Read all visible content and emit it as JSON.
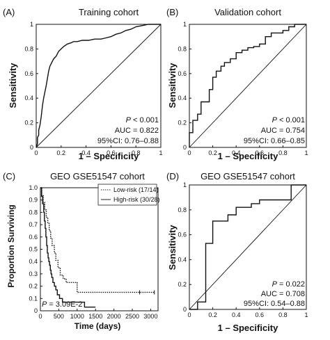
{
  "chart_data": [
    {
      "panel": "(A)",
      "type": "line",
      "title": "Training cohort",
      "xlabel": "1 – Specificity",
      "ylabel": "Sensitivity",
      "xlim": [
        0,
        1
      ],
      "ylim": [
        0,
        1
      ],
      "xticks": [
        "0",
        "0.2",
        "0.4",
        "0.6",
        "0.8",
        "1"
      ],
      "yticks": [
        "0",
        "0.2",
        "0.4",
        "0.6",
        "0.8",
        "1"
      ],
      "series": [
        {
          "role": "roc",
          "x": [
            0,
            0.01,
            0.01,
            0.02,
            0.02,
            0.03,
            0.04,
            0.05,
            0.06,
            0.07,
            0.08,
            0.09,
            0.1,
            0.11,
            0.12,
            0.14,
            0.16,
            0.18,
            0.2,
            0.22,
            0.25,
            0.28,
            0.3,
            0.33,
            0.37,
            0.42,
            0.47,
            0.52,
            0.56,
            0.6,
            0.64,
            0.68,
            0.72,
            0.76,
            0.8,
            0.85,
            0.9,
            1.0
          ],
          "y": [
            0,
            0.03,
            0.08,
            0.1,
            0.14,
            0.18,
            0.25,
            0.34,
            0.4,
            0.45,
            0.5,
            0.56,
            0.62,
            0.66,
            0.68,
            0.72,
            0.74,
            0.78,
            0.8,
            0.82,
            0.84,
            0.85,
            0.86,
            0.86,
            0.87,
            0.87,
            0.88,
            0.88,
            0.89,
            0.9,
            0.92,
            0.93,
            0.95,
            0.96,
            0.98,
            0.99,
            1.0,
            1.0
          ]
        },
        {
          "role": "diagonal",
          "x": [
            0,
            1
          ],
          "y": [
            0,
            1
          ]
        }
      ],
      "annotations": {
        "p": "P",
        "p_rest": " < 0.001",
        "auc": "AUC = 0.822",
        "ci": "95%CI: 0.76–0.88"
      }
    },
    {
      "panel": "(B)",
      "type": "line",
      "title": "Validation cohort",
      "xlabel": "1 – Specificity",
      "ylabel": "Sensitivity",
      "xlim": [
        0,
        1
      ],
      "ylim": [
        0,
        1
      ],
      "xticks": [
        "0",
        "0.2",
        "0.4",
        "0.6",
        "0.8",
        "1"
      ],
      "yticks": [
        "0",
        "0.2",
        "0.4",
        "0.6",
        "0.8",
        "1"
      ],
      "series": [
        {
          "role": "roc",
          "x": [
            0,
            0,
            0.03,
            0.03,
            0.07,
            0.07,
            0.1,
            0.1,
            0.17,
            0.17,
            0.2,
            0.2,
            0.23,
            0.23,
            0.27,
            0.27,
            0.3,
            0.3,
            0.35,
            0.35,
            0.4,
            0.4,
            0.45,
            0.45,
            0.5,
            0.5,
            0.55,
            0.55,
            0.6,
            0.6,
            0.65,
            0.65,
            0.7,
            0.7,
            0.8,
            0.8,
            0.85,
            0.85,
            0.9,
            0.9,
            1.0
          ],
          "y": [
            0,
            0.12,
            0.12,
            0.22,
            0.22,
            0.27,
            0.27,
            0.37,
            0.37,
            0.47,
            0.47,
            0.57,
            0.57,
            0.62,
            0.62,
            0.66,
            0.66,
            0.69,
            0.69,
            0.72,
            0.72,
            0.77,
            0.77,
            0.79,
            0.79,
            0.81,
            0.81,
            0.82,
            0.82,
            0.84,
            0.84,
            0.9,
            0.9,
            0.93,
            0.93,
            0.95,
            0.95,
            0.98,
            0.98,
            1.0,
            1.0
          ]
        },
        {
          "role": "diagonal",
          "x": [
            0,
            1
          ],
          "y": [
            0,
            1
          ]
        }
      ],
      "annotations": {
        "p": "P",
        "p_rest": " < 0.001",
        "auc": "AUC = 0.754",
        "ci": "95%CI: 0.66–0.85"
      }
    },
    {
      "panel": "(C)",
      "type": "line",
      "title": "GEO GSE51547 cohort",
      "xlabel": "Time (days)",
      "ylabel": "Proportion Surviving",
      "xlim": [
        0,
        3200
      ],
      "ylim": [
        0,
        1
      ],
      "xticks": [
        "0",
        "500",
        "1000",
        "1500",
        "2000",
        "2500",
        "3000"
      ],
      "yticks": [
        "0",
        "0.1",
        "0.2",
        "0.3",
        "0.4",
        "0.5",
        "0.6",
        "0.7",
        "0.8",
        "0.9",
        "1.0"
      ],
      "series": [
        {
          "name": "Low-risk (17/14)",
          "style": "dotted",
          "x": [
            0,
            40,
            80,
            120,
            160,
            200,
            240,
            280,
            320,
            380,
            420,
            480,
            540,
            620,
            700,
            860,
            1000,
            1000,
            3100
          ],
          "y": [
            1.0,
            0.94,
            0.88,
            0.82,
            0.76,
            0.71,
            0.65,
            0.59,
            0.53,
            0.47,
            0.41,
            0.35,
            0.29,
            0.26,
            0.23,
            0.23,
            0.23,
            0.15,
            0.15
          ],
          "censored": [
            {
              "x": 2700,
              "y": 0.15
            },
            {
              "x": 3100,
              "y": 0.15
            }
          ]
        },
        {
          "name": "High-risk (30/28)",
          "style": "solid",
          "x": [
            0,
            30,
            60,
            90,
            110,
            130,
            150,
            170,
            190,
            210,
            230,
            250,
            270,
            290,
            310,
            340,
            380,
            420,
            460,
            520,
            600,
            760,
            1200,
            1500
          ],
          "y": [
            1.0,
            0.93,
            0.87,
            0.8,
            0.73,
            0.67,
            0.6,
            0.53,
            0.47,
            0.43,
            0.4,
            0.37,
            0.33,
            0.3,
            0.27,
            0.23,
            0.2,
            0.17,
            0.13,
            0.1,
            0.07,
            0.07,
            0.03,
            0.03
          ]
        }
      ],
      "legend": {
        "position": "top-right"
      },
      "annotations": {
        "p": "P",
        "p_rest": " = 3.09E-2"
      }
    },
    {
      "panel": "(D)",
      "type": "line",
      "title": "GEO GSE51547 cohort",
      "xlabel": "1 – Specificity",
      "ylabel": "Sensitivity",
      "xlim": [
        0,
        1
      ],
      "ylim": [
        0,
        1
      ],
      "xticks": [
        "0",
        "0.2",
        "0.4",
        "0.6",
        "0.8",
        "1"
      ],
      "yticks": [
        "0",
        "0.2",
        "0.4",
        "0.6",
        "0.8",
        "1"
      ],
      "series": [
        {
          "role": "roc",
          "x": [
            0,
            0.07,
            0.07,
            0.14,
            0.14,
            0.2,
            0.2,
            0.27,
            0.27,
            0.33,
            0.33,
            0.4,
            0.4,
            0.47,
            0.47,
            0.53,
            0.53,
            0.6,
            0.6,
            0.87,
            0.87,
            1.0
          ],
          "y": [
            0,
            0,
            0.06,
            0.06,
            0.53,
            0.53,
            0.71,
            0.71,
            0.71,
            0.71,
            0.76,
            0.76,
            0.82,
            0.82,
            0.82,
            0.82,
            0.85,
            0.85,
            0.88,
            0.88,
            1.0,
            1.0
          ]
        },
        {
          "role": "diagonal",
          "x": [
            0,
            1
          ],
          "y": [
            0,
            1
          ]
        }
      ],
      "annotations": {
        "p": "P",
        "p_rest": " = 0.022",
        "auc": "AUC = 0.708",
        "ci": "95%CI: 0.54–0.88"
      }
    }
  ]
}
